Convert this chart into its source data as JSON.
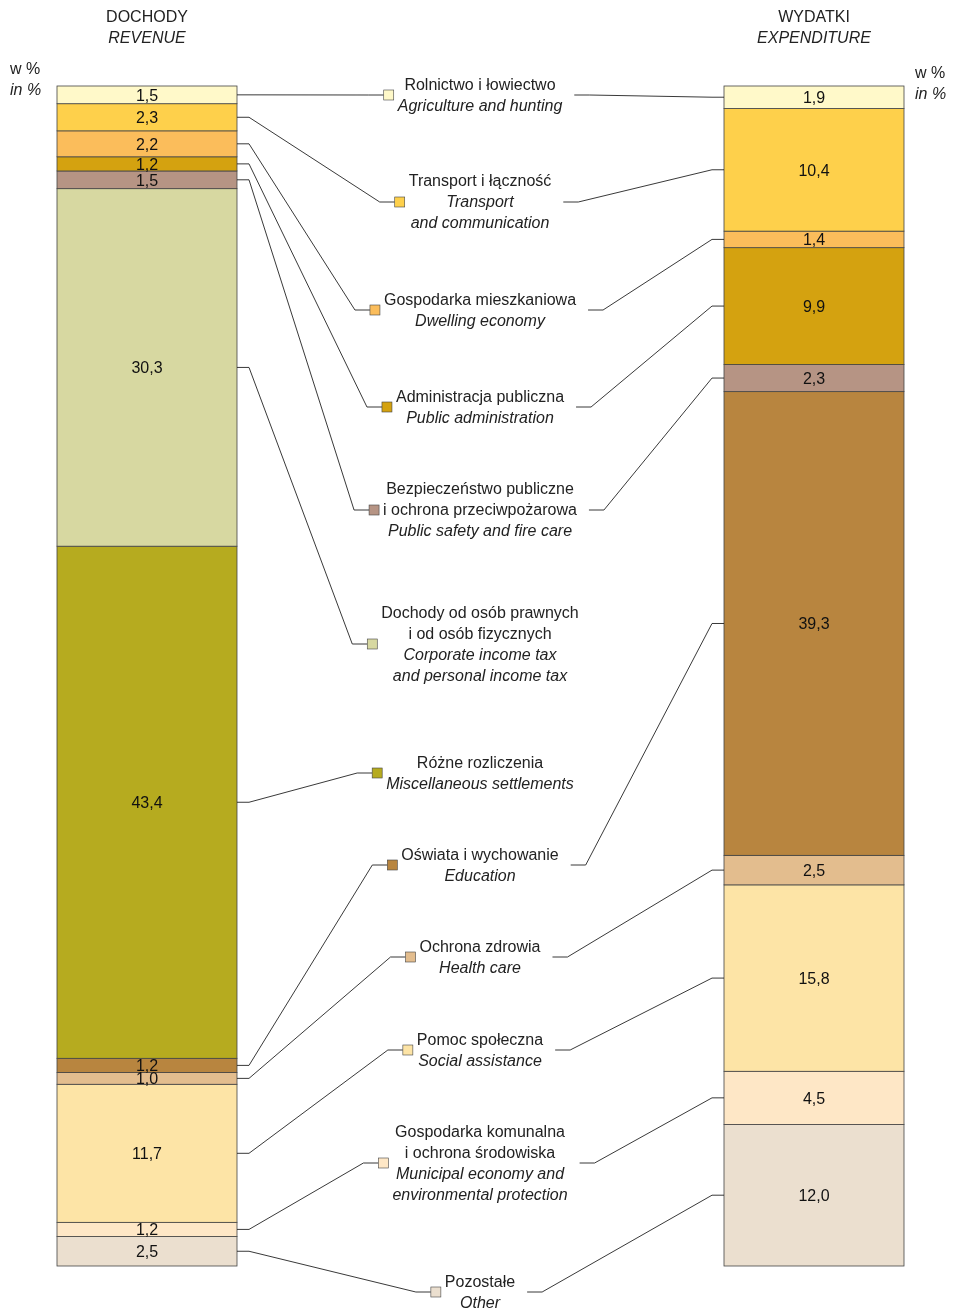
{
  "chart_data": {
    "type": "bar",
    "stacked": true,
    "legend": "center",
    "ylim": [
      0,
      100
    ],
    "ylabel": "w %\n\nin %",
    "y2label": "w %\n\nin %",
    "categories": [
      "DOCHODY\n\nREVENUE",
      "WYDATKI\n\nEXPENDITURE"
    ],
    "series": [
      {
        "name": "Pozostałe\n\nOther",
        "color": "#ebdfcf",
        "values": [
          2.5,
          12.0
        ],
        "value_labels": [
          "2,5",
          "12,0"
        ]
      },
      {
        "name": "Gospodarka komunalna\ni ochrona środowiska\n\nMunicipal economy and\nenvironmental protection",
        "color": "#fee7c6",
        "values": [
          1.2,
          4.5
        ],
        "value_labels": [
          "1,2",
          "4,5"
        ]
      },
      {
        "name": "Pomoc społeczna\n\nSocial assistance",
        "color": "#fde4a6",
        "values": [
          11.7,
          15.8
        ],
        "value_labels": [
          "11,7",
          "15,8"
        ]
      },
      {
        "name": "Ochrona zdrowia\n\nHealth care",
        "color": "#e3bd8e",
        "values": [
          1.0,
          2.5
        ],
        "value_labels": [
          "1,0",
          "2,5"
        ]
      },
      {
        "name": "Oświata i wychowanie\n\nEducation",
        "color": "#b8853f",
        "values": [
          1.2,
          39.3
        ],
        "value_labels": [
          "1,2",
          "39,3"
        ]
      },
      {
        "name": "Różne rozliczenia\n\nMiscellaneous settlements",
        "color": "#b6ab1f",
        "values": [
          43.4,
          null
        ],
        "value_labels": [
          "43,4",
          null
        ]
      },
      {
        "name": "Dochody od osób prawnych\ni od osób fizycznych\n\nCorporate income tax\nand personal income tax",
        "color": "#d7d8a1",
        "values": [
          30.3,
          null
        ],
        "value_labels": [
          "30,3",
          null
        ]
      },
      {
        "name": "Bezpieczeństwo publiczne\ni ochrona przeciwpożarowa\n\nPublic safety and fire care",
        "color": "#b69484",
        "values": [
          1.5,
          2.3
        ],
        "value_labels": [
          "1,5",
          "2,3"
        ]
      },
      {
        "name": "Administracja publiczna\n\nPublic administration",
        "color": "#d4a210",
        "values": [
          1.2,
          9.9
        ],
        "value_labels": [
          "1,2",
          "9,9"
        ]
      },
      {
        "name": "Gospodarka mieszkaniowa\n\nDwelling economy",
        "color": "#fbbd5b",
        "values": [
          2.2,
          1.4
        ],
        "value_labels": [
          "2,2",
          "1,4"
        ]
      },
      {
        "name": "Transport i łączność\n\nTransport\nand communication",
        "color": "#fed04b",
        "values": [
          2.3,
          10.4
        ],
        "value_labels": [
          "2,3",
          "10,4"
        ]
      },
      {
        "name": "Rolnictwo i łowiectwo\n\nAgriculture and hunting",
        "color": "#fff9c9",
        "values": [
          1.5,
          1.9
        ],
        "value_labels": [
          "1,5",
          "1,9"
        ]
      }
    ]
  }
}
